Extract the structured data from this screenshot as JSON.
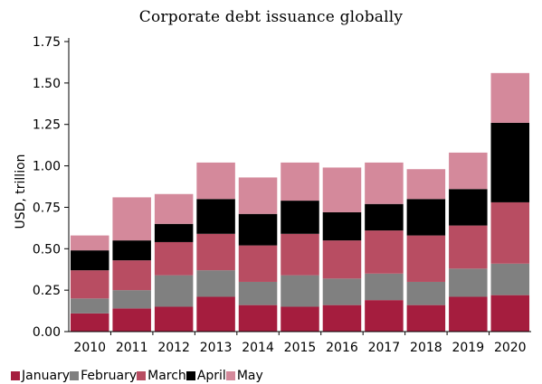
{
  "chart_data": {
    "type": "bar",
    "stacked": true,
    "title": "Corporate debt issuance globally",
    "xlabel": "",
    "ylabel": "USD, trillion",
    "ylim": [
      0,
      1.75
    ],
    "yticks": [
      "0.00",
      "0.25",
      "0.50",
      "0.75",
      "1.00",
      "1.25",
      "1.50",
      "1.75"
    ],
    "ytick_values": [
      0,
      0.25,
      0.5,
      0.75,
      1.0,
      1.25,
      1.5,
      1.75
    ],
    "grid": false,
    "legend_position": "bottom",
    "categories": [
      "2010",
      "2011",
      "2012",
      "2013",
      "2014",
      "2015",
      "2016",
      "2017",
      "2018",
      "2019",
      "2020"
    ],
    "series": [
      {
        "name": "January",
        "color": "#a51d3e",
        "values": [
          0.11,
          0.14,
          0.15,
          0.21,
          0.16,
          0.15,
          0.16,
          0.19,
          0.16,
          0.21,
          0.22
        ]
      },
      {
        "name": "February",
        "color": "#808080",
        "values": [
          0.09,
          0.11,
          0.19,
          0.16,
          0.14,
          0.19,
          0.16,
          0.16,
          0.14,
          0.17,
          0.19
        ]
      },
      {
        "name": "March",
        "color": "#b84d62",
        "values": [
          0.17,
          0.18,
          0.2,
          0.22,
          0.22,
          0.25,
          0.23,
          0.26,
          0.28,
          0.26,
          0.37
        ]
      },
      {
        "name": "April",
        "color": "#000000",
        "values": [
          0.12,
          0.12,
          0.11,
          0.21,
          0.19,
          0.2,
          0.17,
          0.16,
          0.22,
          0.22,
          0.48
        ]
      },
      {
        "name": "May",
        "color": "#d4899b",
        "values": [
          0.09,
          0.26,
          0.18,
          0.22,
          0.22,
          0.23,
          0.27,
          0.25,
          0.18,
          0.22,
          0.3
        ]
      }
    ]
  }
}
